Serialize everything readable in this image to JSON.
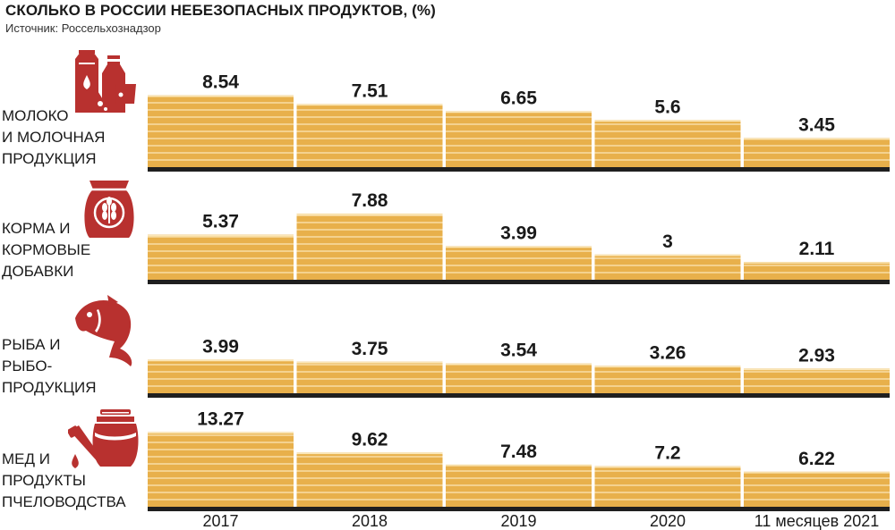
{
  "header": {
    "title": "СКОЛЬКО В РОССИИ НЕБЕЗОПАСНЫХ ПРОДУКТОВ, (%)",
    "source": "Источник: Россельхознадзор"
  },
  "colors": {
    "bar": "#e8b04b",
    "bar_line": "#fbe7b8",
    "baseline": "#1f1f1f",
    "icon": "#b8312f"
  },
  "rows": [
    {
      "label": "МОЛОКО\nИ МОЛОЧНАЯ\nПРОДУКЦИЯ",
      "icon": "dairy-icon"
    },
    {
      "label": "КОРМА И\nКОРМОВЫЕ\nДОБАВКИ",
      "icon": "feed-sack-icon"
    },
    {
      "label": "РЫБА И\nРЫБО-\nПРОДУКЦИЯ",
      "icon": "fish-icon"
    },
    {
      "label": "МЕД И\nПРОДУКТЫ\nПЧЕЛОВОДСТВА",
      "icon": "honey-pot-icon"
    }
  ],
  "chart_data": {
    "type": "bar",
    "categories": [
      "2017",
      "2018",
      "2019",
      "2020",
      "11 месяцев 2021"
    ],
    "series": [
      {
        "name": "МОЛОКО И МОЛОЧНАЯ ПРОДУКЦИЯ",
        "values": [
          8.54,
          7.51,
          6.65,
          5.6,
          3.45
        ],
        "labels": [
          "8.54",
          "7.51",
          "6.65",
          "5.6",
          "3.45"
        ]
      },
      {
        "name": "КОРМА И КОРМОВЫЕ ДОБАВКИ",
        "values": [
          5.37,
          7.88,
          3.99,
          3,
          2.11
        ],
        "labels": [
          "5.37",
          "7.88",
          "3.99",
          "3",
          "2.11"
        ]
      },
      {
        "name": "РЫБА И РЫБО-ПРОДУКЦИЯ",
        "values": [
          3.99,
          3.75,
          3.54,
          3.26,
          2.93
        ],
        "labels": [
          "3.99",
          "3.75",
          "3.54",
          "3.26",
          "2.93"
        ]
      },
      {
        "name": "МЕД И ПРОДУКТЫ ПЧЕЛОВОДСТВА",
        "values": [
          13.27,
          9.62,
          7.48,
          7.2,
          6.22
        ],
        "labels": [
          "13.27",
          "9.62",
          "7.48",
          "7.2",
          "6.22"
        ]
      }
    ],
    "title": "СКОЛЬКО В РОССИИ НЕБЕЗОПАСНЫХ ПРОДУКТОВ, (%)",
    "xlabel": "",
    "ylabel": "",
    "grid": false,
    "legend": "none"
  }
}
